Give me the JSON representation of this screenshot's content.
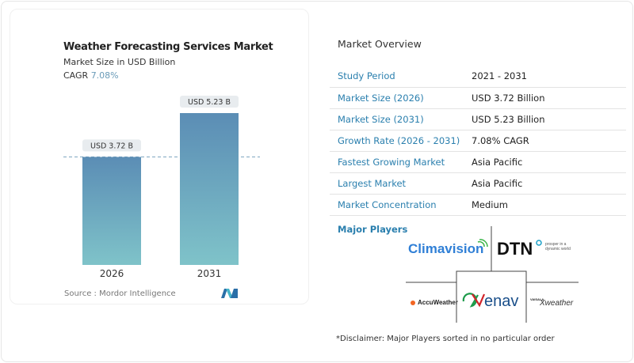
{
  "chart_data": {
    "type": "bar",
    "title": "Weather Forecasting Services Market",
    "subtitle": "Market Size in USD Billion",
    "cagr_label": "CAGR",
    "cagr_value": "7.08%",
    "categories": [
      "2026",
      "2031"
    ],
    "values": [
      3.72,
      5.23
    ],
    "data_labels": [
      "USD 3.72 B",
      "USD 5.23 B"
    ],
    "source": "Source :  Mordor Intelligence",
    "colors": {
      "bar_top": "#5b8db5",
      "bar_bottom": "#7fc3c9",
      "reference_line": "#7aa3bf"
    }
  },
  "overview": {
    "title": "Market Overview",
    "rows": [
      {
        "label": "Study Period",
        "value": "2021 - 2031"
      },
      {
        "label": "Market Size (2026)",
        "value": "USD 3.72 Billion"
      },
      {
        "label": "Market Size (2031)",
        "value": "USD 5.23 Billion"
      },
      {
        "label": "Growth Rate (2026 - 2031)",
        "value": "7.08% CAGR"
      },
      {
        "label": "Fastest Growing Market",
        "value": "Asia Pacific"
      },
      {
        "label": "Largest Market",
        "value": "Asia Pacific"
      },
      {
        "label": "Market Concentration",
        "value": "Medium"
      }
    ]
  },
  "players": {
    "title": "Major Players",
    "logos": [
      "Climavision",
      "DTN",
      "prosper in a dynamic world",
      "AccuWeather",
      "enav",
      "VAISALA",
      "Xweather"
    ]
  },
  "disclaimer": "*Disclaimer: Major Players sorted in no particular order"
}
